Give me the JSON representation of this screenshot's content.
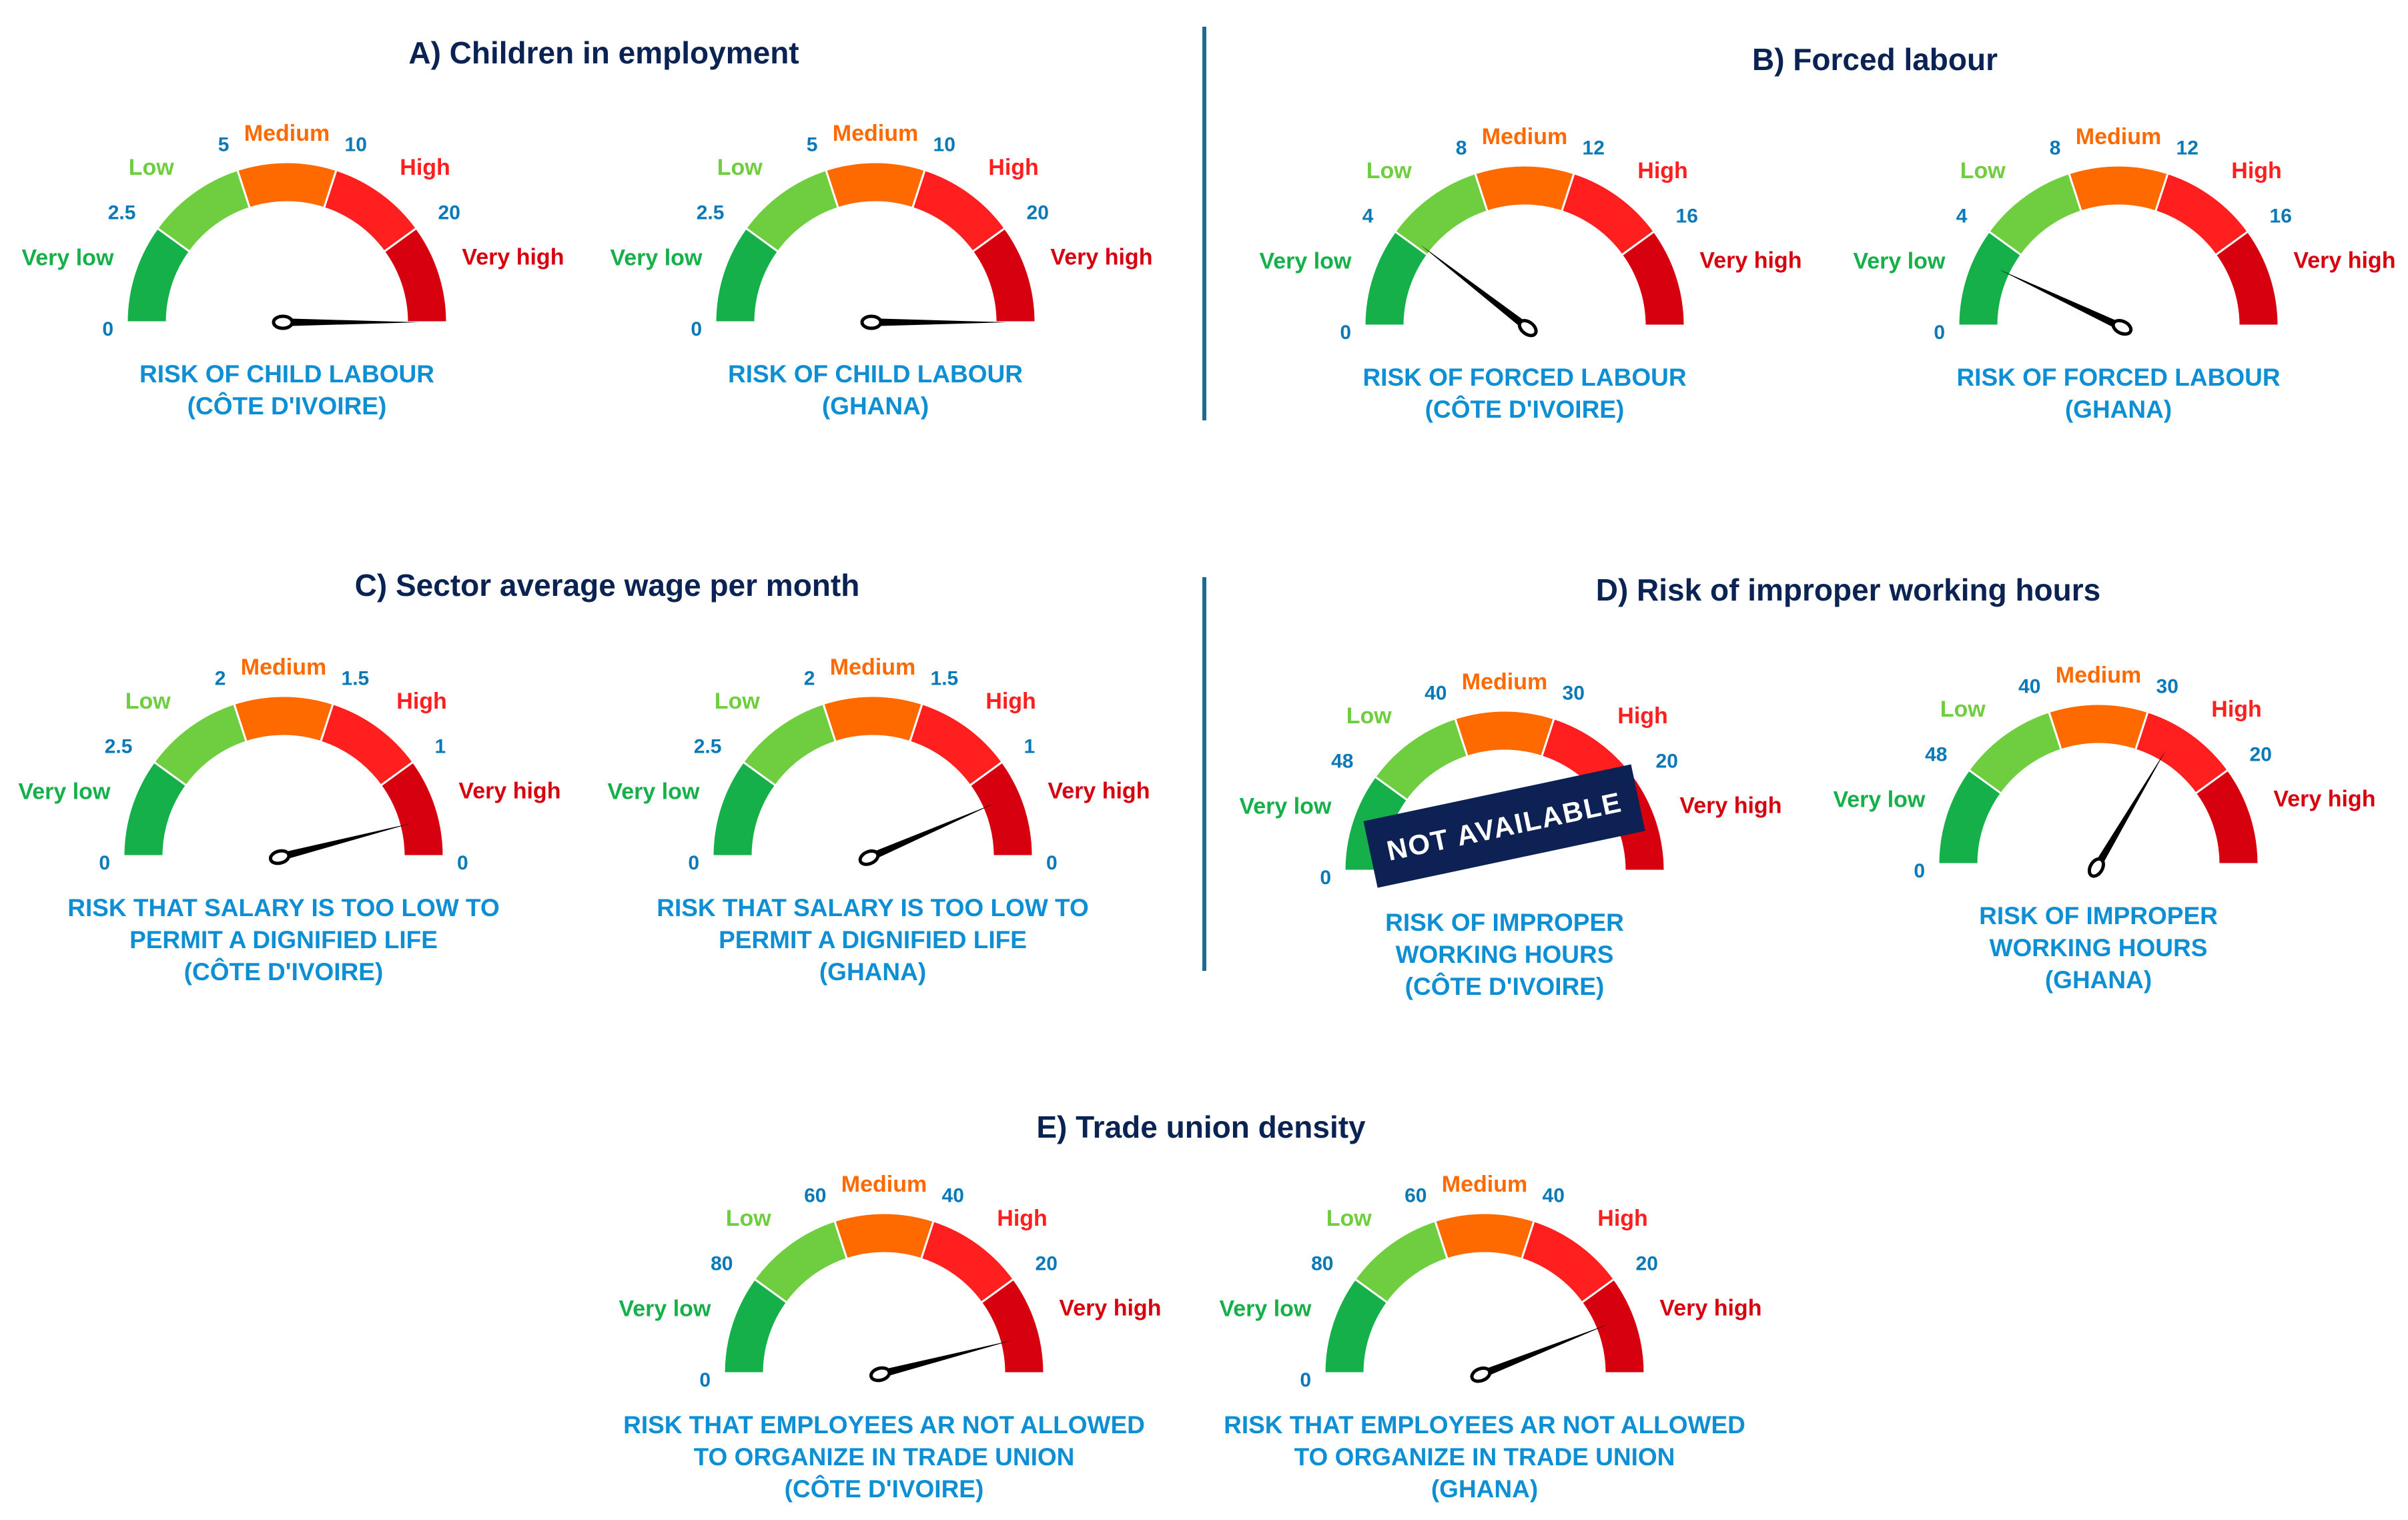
{
  "colors": {
    "very_low": "#16b04a",
    "low": "#6fce3f",
    "medium": "#ff6a00",
    "high": "#ff1f1f",
    "very_high": "#d6000f",
    "title": "#0b2353",
    "tick": "#0a79b8",
    "caption": "#0f8fd3",
    "divider": "#1a6e8a",
    "banner": "#0d2155"
  },
  "categories": [
    "Very low",
    "Low",
    "Medium",
    "High",
    "Very high"
  ],
  "sections": [
    {
      "id": "A",
      "title": "A) Children in employment"
    },
    {
      "id": "B",
      "title": "B) Forced labour"
    },
    {
      "id": "C",
      "title": "C) Sector average wage per month"
    },
    {
      "id": "D",
      "title": "D) Risk of improper working hours"
    },
    {
      "id": "E",
      "title": "E) Trade union density"
    }
  ],
  "chart_data": [
    {
      "type": "gauge",
      "section": "A",
      "ticks": [
        "0",
        "2.5",
        "5",
        "10",
        "20"
      ],
      "caption": [
        "RISK OF CHILD LABOUR",
        "(CÔTE D'IVOIRE)"
      ],
      "needle_level": 1.0
    },
    {
      "type": "gauge",
      "section": "A",
      "ticks": [
        "0",
        "2.5",
        "5",
        "10",
        "20"
      ],
      "caption": [
        "RISK OF CHILD LABOUR",
        "(GHANA)"
      ],
      "needle_level": 1.0
    },
    {
      "type": "gauge",
      "section": "B",
      "ticks": [
        "0",
        "4",
        "8",
        "12",
        "16"
      ],
      "caption": [
        "RISK OF FORCED LABOUR",
        "(CÔTE D'IVOIRE)"
      ],
      "needle_level": 0.21
    },
    {
      "type": "gauge",
      "section": "B",
      "ticks": [
        "0",
        "4",
        "8",
        "12",
        "16"
      ],
      "caption": [
        "RISK OF FORCED LABOUR",
        "(GHANA)"
      ],
      "needle_level": 0.14
    },
    {
      "type": "gauge",
      "section": "C",
      "ticks": [
        "0",
        "2.5",
        "2",
        "1.5",
        "1",
        "0"
      ],
      "caption": [
        "RISK THAT SALARY IS TOO LOW TO",
        "PERMIT A DIGNIFIED LIFE",
        "(CÔTE D'IVOIRE)"
      ],
      "needle_level": 0.92
    },
    {
      "type": "gauge",
      "section": "C",
      "ticks": [
        "0",
        "2.5",
        "2",
        "1.5",
        "1",
        "0"
      ],
      "caption": [
        "RISK THAT SALARY IS TOO LOW TO",
        "PERMIT A DIGNIFIED LIFE",
        "(GHANA)"
      ],
      "needle_level": 0.87
    },
    {
      "type": "gauge",
      "section": "D",
      "ticks": [
        "0",
        "48",
        "40",
        "30",
        "20"
      ],
      "caption": [
        "RISK OF IMPROPER",
        "WORKING HOURS",
        "(CÔTE D'IVOIRE)"
      ],
      "needle_level": null,
      "overlay": "NOT AVAILABLE"
    },
    {
      "type": "gauge",
      "section": "D",
      "ticks": [
        "0",
        "48",
        "40",
        "30",
        "20"
      ],
      "caption": [
        "RISK OF IMPROPER",
        "WORKING HOURS",
        "(GHANA)"
      ],
      "needle_level": 0.67
    },
    {
      "type": "gauge",
      "section": "E",
      "ticks": [
        "0",
        "80",
        "60",
        "40",
        "20"
      ],
      "caption": [
        "RISK THAT EMPLOYEES AR NOT ALLOWED",
        "TO ORGANIZE IN TRADE UNION",
        "(CÔTE D'IVOIRE)"
      ],
      "needle_level": 0.92
    },
    {
      "type": "gauge",
      "section": "E",
      "ticks": [
        "0",
        "80",
        "60",
        "40",
        "20"
      ],
      "caption": [
        "RISK THAT EMPLOYEES AR NOT ALLOWED",
        "TO ORGANIZE IN TRADE UNION",
        "(GHANA)"
      ],
      "needle_level": 0.88
    }
  ]
}
